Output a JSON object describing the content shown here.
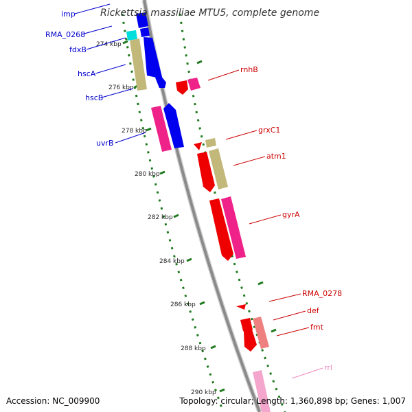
{
  "title": "Rickettsia massiliae MTU5, complete genome",
  "footer": {
    "accession": "Accession: NC_009900",
    "summary": "Topology: circular; Length: 1,360,898 bp; Genes: 1,007"
  },
  "colors": {
    "backbone": "#8a8a8a",
    "tick": "#1f7a1f",
    "left_label": "#0000cc",
    "right_label": "#cc0000",
    "pink_label": "#ee88bb",
    "gene_blue": "#0000ee",
    "gene_cyan": "#00dddd",
    "gene_olive": "#c2b87a",
    "gene_red": "#ee0000",
    "gene_magenta": "#ee2288",
    "gene_salmon": "#ee8080",
    "gene_pink": "#f4a6cc"
  },
  "scale_labels": [
    "274 kbp",
    "276 kbp",
    "278 kbp",
    "280 kbp",
    "282 kbp",
    "284 kbp",
    "286 kbp",
    "288 kbp",
    "290 kbp"
  ],
  "genes_left": [
    {
      "name": "imp"
    },
    {
      "name": "RMA_0268"
    },
    {
      "name": "fdxB"
    },
    {
      "name": "hscA"
    },
    {
      "name": "hscB"
    },
    {
      "name": "uvrB"
    }
  ],
  "genes_right": [
    {
      "name": "rnhB"
    },
    {
      "name": "grxC1"
    },
    {
      "name": "atm1"
    },
    {
      "name": "gyrA"
    },
    {
      "name": "RMA_0278"
    },
    {
      "name": "def"
    },
    {
      "name": "fmt"
    },
    {
      "name": "rrl"
    }
  ]
}
